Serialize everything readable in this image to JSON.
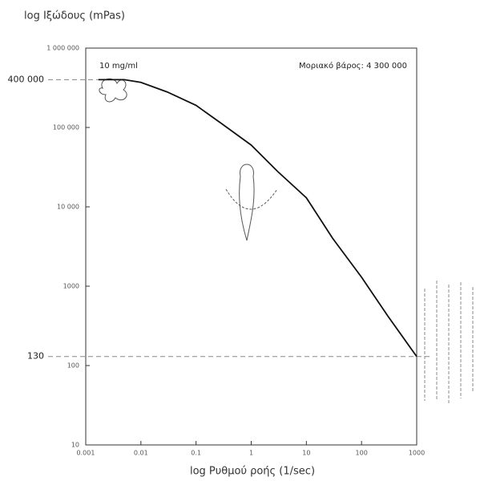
{
  "chart_data": {
    "type": "line",
    "ylabel": "log Ιξώδους (mPas)",
    "xlabel": "log Ρυθμού ροής (1/sec)",
    "annotations": [
      "10 mg/ml",
      "Μοριακό βάρος:  4 300 000"
    ],
    "log_x": true,
    "log_y": true,
    "xlim": [
      0.001,
      1000
    ],
    "xticks": [
      0.001,
      0.01,
      0.1,
      1,
      10,
      100,
      1000
    ],
    "ylim": [
      10,
      1000000
    ],
    "yticks": [
      {
        "value": 1000000,
        "label": "1 000 000"
      },
      {
        "value": 100000,
        "label": "100 000"
      },
      {
        "value": 10000,
        "label": "10 000"
      },
      1000,
      100,
      10
    ],
    "reference_lines": [
      {
        "value": 400000,
        "label": "400 000"
      },
      {
        "value": 130,
        "label": "130"
      }
    ],
    "x": [
      0.0017,
      0.005,
      0.01,
      0.03,
      0.1,
      0.3,
      1,
      3,
      10,
      30,
      100,
      300,
      1000
    ],
    "series": [
      {
        "color": "#111111",
        "values": [
          400000,
          400000,
          370000,
          280000,
          190000,
          110000,
          60000,
          28000,
          13000,
          4000,
          1300,
          420,
          130
        ]
      }
    ]
  }
}
